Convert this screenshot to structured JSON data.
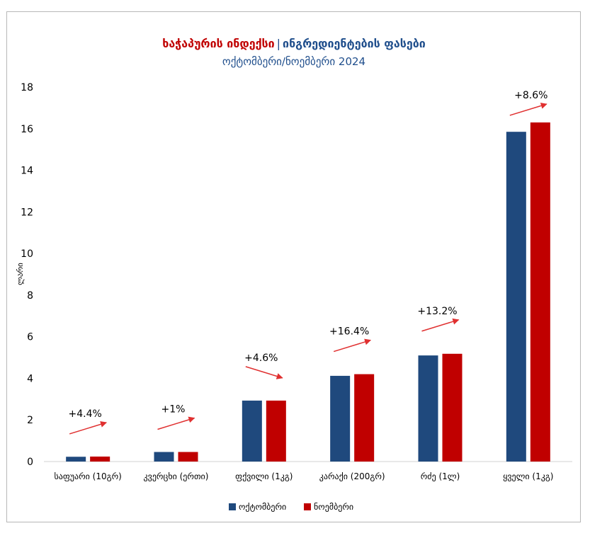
{
  "title": {
    "part1": "ხაჭაპურის ინდექსი",
    "separator": "|",
    "part2": "ინგრედიენტების ფასები",
    "line2": "ოქტომბერი/ნოემბერი 2024",
    "color_red": "#c00000",
    "color_blue": "#1f4e8c"
  },
  "chart_data": {
    "type": "bar",
    "categories": [
      "საფუარი (10გრ)",
      "კვერცხი (ერთი)",
      "ფქვილი (1კგ)",
      "კარაქი (200გრ)",
      "რძე (1ლ)",
      "ყველი (1კგ)"
    ],
    "series": [
      {
        "name": "ოქტომბერი",
        "color": "#1f497d",
        "values": [
          0.23,
          0.46,
          2.93,
          4.12,
          5.1,
          15.85
        ]
      },
      {
        "name": "ნოემბერი",
        "color": "#c00000",
        "values": [
          0.24,
          0.46,
          2.93,
          4.2,
          5.18,
          16.3
        ]
      }
    ],
    "annotations": [
      "+4.4%",
      "+1%",
      "+4.6%",
      "+16.4%",
      "+13.2%",
      "+8.6%"
    ],
    "arrow_direction": [
      "up",
      "up",
      "down",
      "up",
      "up",
      "up"
    ],
    "arrow_color": "#e03030",
    "ylabel": "ლარი",
    "ylim": [
      0,
      18
    ],
    "yticks": [
      0,
      2,
      4,
      6,
      8,
      10,
      12,
      14,
      16,
      18
    ],
    "grid": false,
    "legend": "bottom"
  }
}
